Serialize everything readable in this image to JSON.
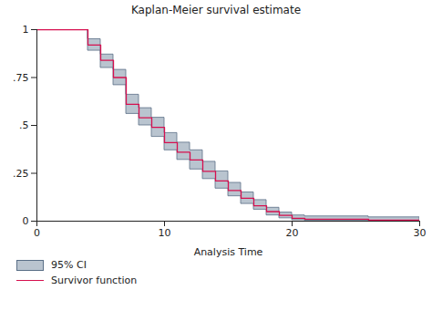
{
  "chart_data": {
    "type": "step",
    "title": "Kaplan-Meier survival estimate",
    "x_label": "Analysis Time",
    "x": [
      0,
      4,
      5,
      6,
      7,
      8,
      9,
      10,
      11,
      12,
      13,
      14,
      15,
      16,
      17,
      18,
      19,
      20,
      21,
      26,
      30
    ],
    "series": [
      {
        "name": "Survivor function",
        "color": "#d6104f",
        "values": [
          1,
          0.92,
          0.84,
          0.75,
          0.61,
          0.54,
          0.49,
          0.41,
          0.36,
          0.32,
          0.26,
          0.21,
          0.16,
          0.12,
          0.08,
          0.05,
          0.03,
          0.015,
          0.01,
          0.005,
          0.005
        ]
      }
    ],
    "ci": {
      "name": "95% CI",
      "color": "#b9c4cf",
      "lower": [
        1,
        0.89,
        0.8,
        0.71,
        0.56,
        0.5,
        0.44,
        0.37,
        0.32,
        0.27,
        0.22,
        0.17,
        0.13,
        0.09,
        0.06,
        0.03,
        0.015,
        0.005,
        0.002,
        0,
        0
      ],
      "upper": [
        1,
        0.95,
        0.87,
        0.79,
        0.66,
        0.59,
        0.54,
        0.46,
        0.41,
        0.37,
        0.31,
        0.26,
        0.2,
        0.15,
        0.11,
        0.07,
        0.045,
        0.03,
        0.025,
        0.02,
        0.02
      ]
    },
    "xlim": [
      0,
      30
    ],
    "xticks": [
      0,
      10,
      20,
      30
    ],
    "ylim": [
      0,
      1
    ],
    "yticks": [
      0,
      {
        "value": 0.25,
        "label": ".25"
      },
      {
        "value": 0.5,
        "label": ".5"
      },
      {
        "value": 0.75,
        "label": ".75"
      },
      1
    ],
    "legend": "bottom",
    "grid": false
  }
}
